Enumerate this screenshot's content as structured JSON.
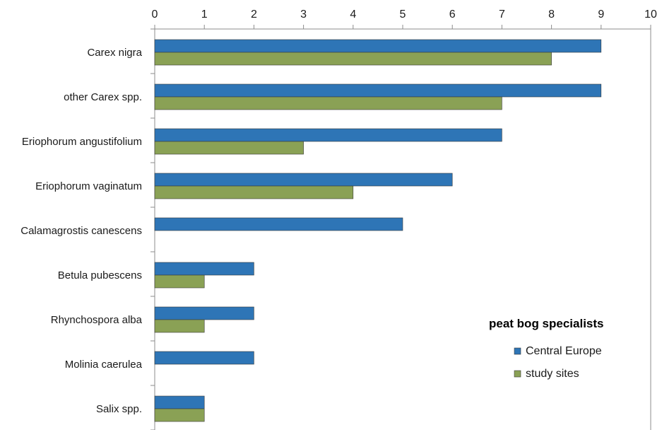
{
  "chart_data": {
    "type": "bar",
    "orientation": "horizontal",
    "categories": [
      "Carex nigra",
      "other Carex spp.",
      "Eriophorum angustifolium",
      "Eriophorum vaginatum",
      "Calamagrostis canescens",
      "Betula pubescens",
      "Rhynchospora alba",
      "Molinia caerulea",
      "Salix spp."
    ],
    "series": [
      {
        "name": "Central Europe",
        "color": "#2E75B6",
        "values": [
          9,
          9,
          7,
          6,
          5,
          2,
          2,
          2,
          1
        ]
      },
      {
        "name": "study sites",
        "color": "#8AA155",
        "values": [
          8,
          7,
          3,
          4,
          0,
          1,
          1,
          0,
          1
        ]
      }
    ],
    "xlim": [
      0,
      10
    ],
    "xticks": [
      0,
      1,
      2,
      3,
      4,
      5,
      6,
      7,
      8,
      9,
      10
    ],
    "x_axis_position": "top",
    "legend": {
      "title": "peat bog specialists",
      "position": "bottom-right"
    },
    "grid": false,
    "title": "",
    "xlabel": "",
    "ylabel": ""
  }
}
